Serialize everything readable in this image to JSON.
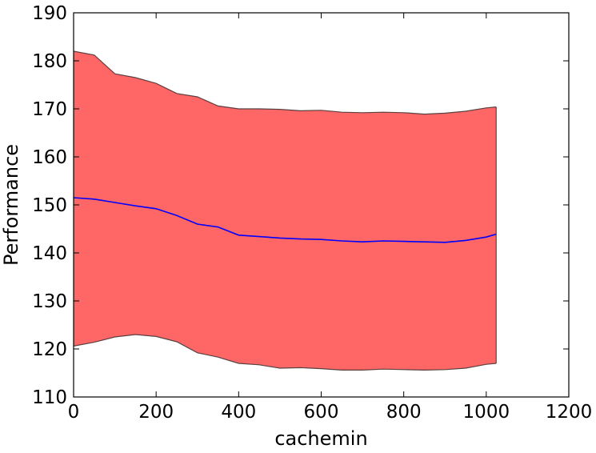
{
  "chart_data": {
    "type": "area",
    "title": "",
    "xlabel": "cachemin",
    "ylabel": "Performance",
    "xlim": [
      0,
      1200
    ],
    "ylim": [
      110,
      190
    ],
    "xticks": [
      0,
      200,
      400,
      600,
      800,
      1000,
      1200
    ],
    "yticks": [
      110,
      120,
      130,
      140,
      150,
      160,
      170,
      180,
      190
    ],
    "grid": false,
    "legend": "none",
    "colors": {
      "band_fill": "#ff6666",
      "band_edge": "#5a4040",
      "mean_line": "#0000ff"
    },
    "x": [
      0,
      50,
      100,
      150,
      200,
      250,
      300,
      350,
      400,
      450,
      500,
      550,
      600,
      650,
      700,
      750,
      800,
      850,
      900,
      950,
      1000,
      1024
    ],
    "series": [
      {
        "role": "upper",
        "values": [
          182.0,
          181.2,
          177.3,
          176.5,
          175.3,
          173.2,
          172.5,
          170.6,
          170.0,
          170.0,
          169.9,
          169.6,
          169.7,
          169.3,
          169.2,
          169.3,
          169.2,
          168.9,
          169.1,
          169.5,
          170.2,
          170.4
        ]
      },
      {
        "role": "mean",
        "values": [
          151.5,
          151.2,
          150.5,
          149.8,
          149.2,
          147.8,
          146.0,
          145.4,
          143.7,
          143.4,
          143.1,
          142.9,
          142.8,
          142.5,
          142.3,
          142.5,
          142.4,
          142.3,
          142.2,
          142.6,
          143.3,
          143.9
        ]
      },
      {
        "role": "lower",
        "values": [
          120.6,
          121.4,
          122.5,
          123.0,
          122.6,
          121.5,
          119.2,
          118.3,
          117.0,
          116.7,
          116.0,
          116.1,
          115.9,
          115.6,
          115.6,
          115.8,
          115.7,
          115.6,
          115.7,
          116.0,
          116.8,
          117.0
        ]
      }
    ]
  }
}
